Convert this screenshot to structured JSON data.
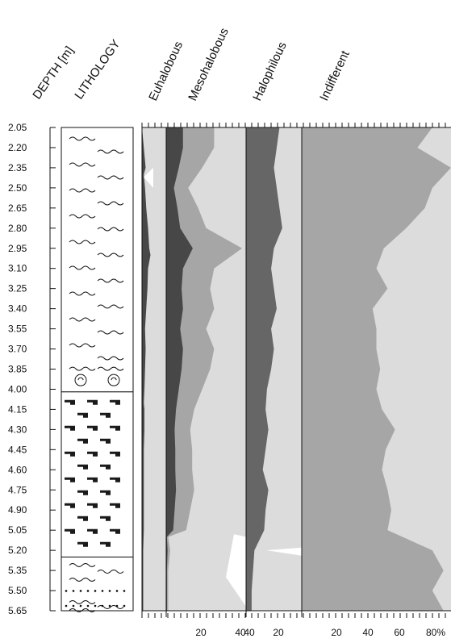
{
  "chart_data": {
    "type": "area",
    "orientation": "vertical-depth",
    "headers": {
      "depth": "DEPTH [m]",
      "lithology": "LITHOLOGY"
    },
    "depth_ticks": [
      "2.05",
      "2.20",
      "2.35",
      "2.50",
      "2.65",
      "2.80",
      "2.95",
      "3.10",
      "3.25",
      "3.40",
      "3.55",
      "3.70",
      "3.85",
      "4.00",
      "4.15",
      "4.30",
      "4.45",
      "4.60",
      "4.75",
      "4.90",
      "5.05",
      "5.20",
      "5.35",
      "5.50",
      "5.65"
    ],
    "depth_range": [
      2.05,
      5.65
    ],
    "lithology_units": [
      {
        "name": "laminated",
        "top": 2.05,
        "bottom": 4.02,
        "shells_at": 3.92
      },
      {
        "name": "blocky",
        "top": 4.02,
        "bottom": 5.25
      },
      {
        "name": "laminated-dotted",
        "top": 5.25,
        "bottom": 5.65
      }
    ],
    "series": [
      {
        "name": "Euhalobous",
        "color": "#4a4a4a",
        "x_max": 40,
        "values": [
          [
            2.05,
            0
          ],
          [
            2.2,
            3
          ],
          [
            2.35,
            6
          ],
          [
            2.4,
            3
          ],
          [
            2.5,
            5
          ],
          [
            2.65,
            7
          ],
          [
            2.8,
            10
          ],
          [
            2.95,
            12
          ],
          [
            3.0,
            14
          ],
          [
            3.1,
            10
          ],
          [
            3.25,
            9
          ],
          [
            3.4,
            7
          ],
          [
            3.55,
            5
          ],
          [
            3.7,
            6
          ],
          [
            3.85,
            5
          ],
          [
            4.0,
            4
          ],
          [
            4.1,
            3
          ],
          [
            4.15,
            4
          ],
          [
            4.3,
            4
          ],
          [
            4.45,
            3
          ],
          [
            4.6,
            3
          ],
          [
            4.75,
            3
          ],
          [
            4.9,
            3
          ],
          [
            5.05,
            3
          ],
          [
            5.2,
            2
          ],
          [
            5.35,
            2
          ],
          [
            5.5,
            2
          ],
          [
            5.65,
            2
          ]
        ]
      },
      {
        "name": "Mesohalobous",
        "color": "#9b9b9b",
        "x_max": 40,
        "values": [
          [
            2.05,
            24
          ],
          [
            2.2,
            24
          ],
          [
            2.35,
            18
          ],
          [
            2.5,
            11
          ],
          [
            2.65,
            16
          ],
          [
            2.8,
            20
          ],
          [
            2.95,
            38
          ],
          [
            3.1,
            24
          ],
          [
            3.25,
            22
          ],
          [
            3.4,
            24
          ],
          [
            3.55,
            20
          ],
          [
            3.7,
            24
          ],
          [
            3.85,
            22
          ],
          [
            4.0,
            18
          ],
          [
            4.15,
            14
          ],
          [
            4.3,
            12
          ],
          [
            4.45,
            13
          ],
          [
            4.6,
            13
          ],
          [
            4.75,
            14
          ],
          [
            4.9,
            12
          ],
          [
            5.05,
            10
          ],
          [
            5.1,
            1
          ],
          [
            5.2,
            2
          ],
          [
            5.35,
            1
          ],
          [
            5.5,
            1
          ],
          [
            5.65,
            1
          ]
        ]
      },
      {
        "name": "Halophilous",
        "color": "#5e5e5e",
        "x_max": 40,
        "values": [
          [
            2.05,
            24
          ],
          [
            2.2,
            22
          ],
          [
            2.35,
            20
          ],
          [
            2.5,
            22
          ],
          [
            2.65,
            24
          ],
          [
            2.8,
            26
          ],
          [
            2.95,
            20
          ],
          [
            3.1,
            18
          ],
          [
            3.25,
            20
          ],
          [
            3.4,
            22
          ],
          [
            3.55,
            18
          ],
          [
            3.7,
            20
          ],
          [
            3.85,
            18
          ],
          [
            4.0,
            15
          ],
          [
            4.15,
            14
          ],
          [
            4.3,
            16
          ],
          [
            4.45,
            14
          ],
          [
            4.6,
            12
          ],
          [
            4.75,
            16
          ],
          [
            4.9,
            14
          ],
          [
            5.05,
            13
          ],
          [
            5.2,
            6
          ],
          [
            5.35,
            5
          ],
          [
            5.5,
            4
          ],
          [
            5.65,
            4
          ]
        ]
      },
      {
        "name": "Indifferent",
        "color": "#8a8a8a",
        "x_max": 80,
        "values": [
          [
            2.05,
            70
          ],
          [
            2.2,
            62
          ],
          [
            2.35,
            80
          ],
          [
            2.5,
            70
          ],
          [
            2.65,
            66
          ],
          [
            2.8,
            56
          ],
          [
            2.95,
            44
          ],
          [
            3.1,
            40
          ],
          [
            3.25,
            46
          ],
          [
            3.4,
            38
          ],
          [
            3.55,
            40
          ],
          [
            3.7,
            40
          ],
          [
            3.85,
            42
          ],
          [
            4.0,
            40
          ],
          [
            4.15,
            43
          ],
          [
            4.3,
            50
          ],
          [
            4.45,
            45
          ],
          [
            4.6,
            43
          ],
          [
            4.75,
            46
          ],
          [
            4.9,
            48
          ],
          [
            5.05,
            46
          ],
          [
            5.2,
            70
          ],
          [
            5.35,
            76
          ],
          [
            5.5,
            70
          ],
          [
            5.65,
            76
          ]
        ]
      }
    ],
    "x_axis_labels": [
      {
        "panel": "Mesohalobous",
        "labels": [
          "20",
          "40"
        ]
      },
      {
        "panel": "Halophilous",
        "labels": [
          "40",
          "20"
        ]
      },
      {
        "panel": "Indifferent",
        "labels": [
          "20",
          "40",
          "60",
          "80%"
        ]
      }
    ],
    "grid": false
  },
  "colors": {
    "background_light": "#dcdcdc",
    "mid_gray": "#a6a6a6",
    "dark_gray": "#474747",
    "axis": "#111111"
  }
}
